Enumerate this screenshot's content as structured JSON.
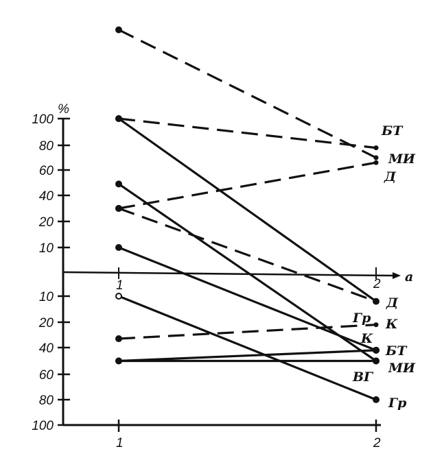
{
  "chart_data": {
    "type": "line",
    "title": "",
    "ylabel": "%",
    "x_axis_label": "a",
    "x_categories": [
      "1",
      "2"
    ],
    "y_ticks_positive": [
      100,
      80,
      60,
      40,
      20,
      10
    ],
    "y_ticks_negative": [
      10,
      20,
      40,
      60,
      80,
      100
    ],
    "y_scale": "non-uniform (ordinal ticks), positive above zero line, negative below",
    "ylim": [
      -100,
      100
    ],
    "grid": false,
    "lines": [
      {
        "from": 170,
        "to": 70,
        "style": "dashed",
        "end_label": "МИ"
      },
      {
        "from": 100,
        "to": 78,
        "style": "dashed",
        "end_label": "БТ"
      },
      {
        "from": 30,
        "to": 66,
        "style": "dashed",
        "end_label": "Д"
      },
      {
        "from": 30,
        "to": -12,
        "style": "dashed",
        "end_label": "Гр"
      },
      {
        "from": -33,
        "to": -22,
        "style": "dashed",
        "end_label": "К"
      },
      {
        "from": 100,
        "to": -12,
        "style": "solid",
        "end_label": "Д"
      },
      {
        "from": 49,
        "to": -50,
        "style": "solid",
        "end_label": "МИ"
      },
      {
        "from": 10,
        "to": -42,
        "style": "solid",
        "end_label": "БТ"
      },
      {
        "from": -10,
        "to": -80,
        "style": "solid",
        "end_label": "Гр",
        "start_marker": "open"
      },
      {
        "from": -50,
        "to": -42,
        "style": "solid",
        "end_label": "БТ"
      },
      {
        "from": -50,
        "to": -50,
        "style": "solid",
        "end_label": "МИ"
      }
    ],
    "point_labels": [
      {
        "text": "БТ",
        "value": 78
      },
      {
        "text": "МИ",
        "value": 70
      },
      {
        "text": "Д",
        "value": 62
      },
      {
        "text": "Д",
        "value": -12
      },
      {
        "text": "Гр",
        "value": -16
      },
      {
        "text": "К",
        "value": -22
      },
      {
        "text": "К",
        "value": -30
      },
      {
        "text": "БТ",
        "value": -42
      },
      {
        "text": "МИ",
        "value": -50
      },
      {
        "text": "ВГ",
        "value": -56
      },
      {
        "text": "Гр",
        "value": -84
      }
    ]
  }
}
